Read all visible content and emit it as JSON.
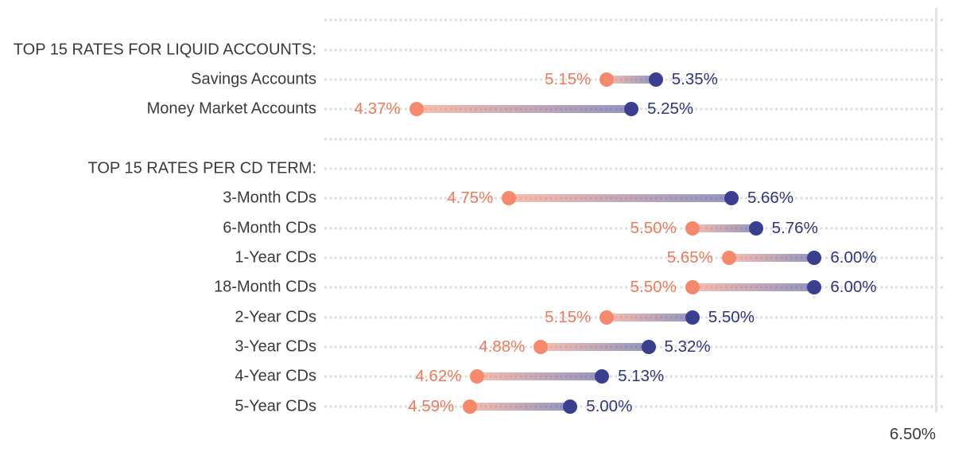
{
  "chart_data": {
    "type": "dumbbell",
    "title": "",
    "axis": {
      "min": 4.0,
      "max": 6.5,
      "max_label": "6.50%",
      "grid": "dotted horizontal line per row",
      "legend": "none"
    },
    "sections": [
      {
        "header": "TOP 15 RATES FOR LIQUID ACCOUNTS:",
        "rows": [
          {
            "label": "Savings Accounts",
            "low": 5.15,
            "high": 5.35,
            "low_label": "5.15%",
            "high_label": "5.35%"
          },
          {
            "label": "Money Market Accounts",
            "low": 4.37,
            "high": 5.25,
            "low_label": "4.37%",
            "high_label": "5.25%"
          }
        ]
      },
      {
        "header": "TOP 15 RATES PER CD TERM:",
        "rows": [
          {
            "label": "3-Month CDs",
            "low": 4.75,
            "high": 5.66,
            "low_label": "4.75%",
            "high_label": "5.66%"
          },
          {
            "label": "6-Month CDs",
            "low": 5.5,
            "high": 5.76,
            "low_label": "5.50%",
            "high_label": "5.76%"
          },
          {
            "label": "1-Year CDs",
            "low": 5.65,
            "high": 6.0,
            "low_label": "5.65%",
            "high_label": "6.00%"
          },
          {
            "label": "18-Month CDs",
            "low": 5.5,
            "high": 6.0,
            "low_label": "5.50%",
            "high_label": "6.00%"
          },
          {
            "label": "2-Year CDs",
            "low": 5.15,
            "high": 5.5,
            "low_label": "5.15%",
            "high_label": "5.50%"
          },
          {
            "label": "3-Year CDs",
            "low": 4.88,
            "high": 5.32,
            "low_label": "4.88%",
            "high_label": "5.32%"
          },
          {
            "label": "4-Year CDs",
            "low": 4.62,
            "high": 5.13,
            "low_label": "4.62%",
            "high_label": "5.13%"
          },
          {
            "label": "5-Year CDs",
            "low": 4.59,
            "high": 5.0,
            "low_label": "4.59%",
            "high_label": "5.00%"
          }
        ]
      }
    ],
    "colors": {
      "low_dot": "#F4896C",
      "high_dot": "#3A3F90",
      "low_text": "#EE795B",
      "high_text": "#2F357F",
      "low_bar": "rgba(244,137,108,0.55)",
      "high_bar": "rgba(58,63,144,0.55)",
      "row_label_text": "#3A3A3A",
      "gridline": "#DDDDDD",
      "axis_line": "#E3E3E3",
      "background": "#FFFFFF"
    }
  }
}
